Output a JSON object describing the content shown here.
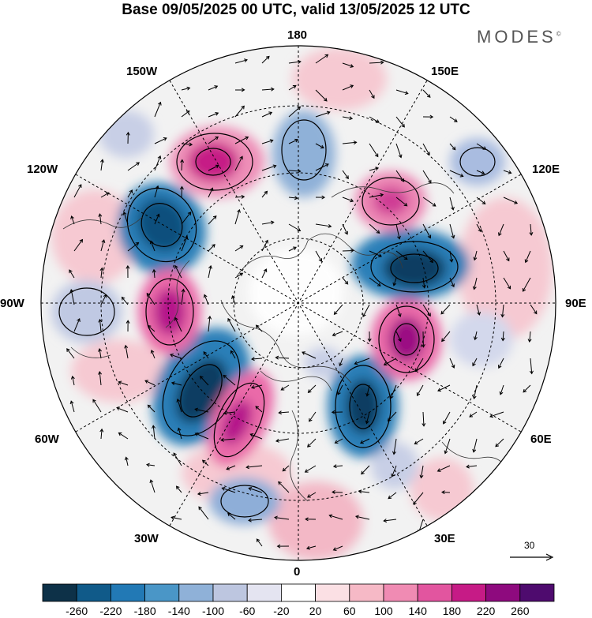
{
  "header": {
    "title": "Base 09/05/2025 00 UTC, valid 13/05/2025 12 UTC",
    "brand": "MODES",
    "brand_mark": "©"
  },
  "map": {
    "projection": "north-polar-stereographic",
    "longitude_labels": {
      "top": "180",
      "bottom": "0",
      "left": "90W",
      "right": "90E",
      "upper_left": "150W",
      "upper_right": "150E",
      "mid_upper_left": "120W",
      "mid_upper_right": "120E",
      "lower_left": "60W",
      "lower_right": "60E",
      "bottom_left": "30W",
      "bottom_right": "30E"
    },
    "reference_vector_label": "30"
  },
  "colors": {
    "neg_dark": "#0d3d62",
    "neg_mid": "#3a86b7",
    "neg_light": "#b9c4e0",
    "neutral": "#ffffff",
    "pos_light": "#f7cfd7",
    "pos_mid": "#e06aa5",
    "pos_dark": "#5b0a77"
  },
  "colorbar": {
    "colors": [
      "#0d3148",
      "#105a89",
      "#2279b5",
      "#4a96c7",
      "#8fb1d8",
      "#bdc6e0",
      "#e4e4f1",
      "#ffffff",
      "#fbe0e4",
      "#f6b9c6",
      "#f08bb3",
      "#e2559f",
      "#c61b86",
      "#8e0a7e",
      "#4e0b6e"
    ],
    "tick_labels": [
      "-260",
      "-220",
      "-180",
      "-140",
      "-100",
      "-60",
      "-20",
      "20",
      "60",
      "100",
      "140",
      "180",
      "220",
      "260"
    ]
  }
}
